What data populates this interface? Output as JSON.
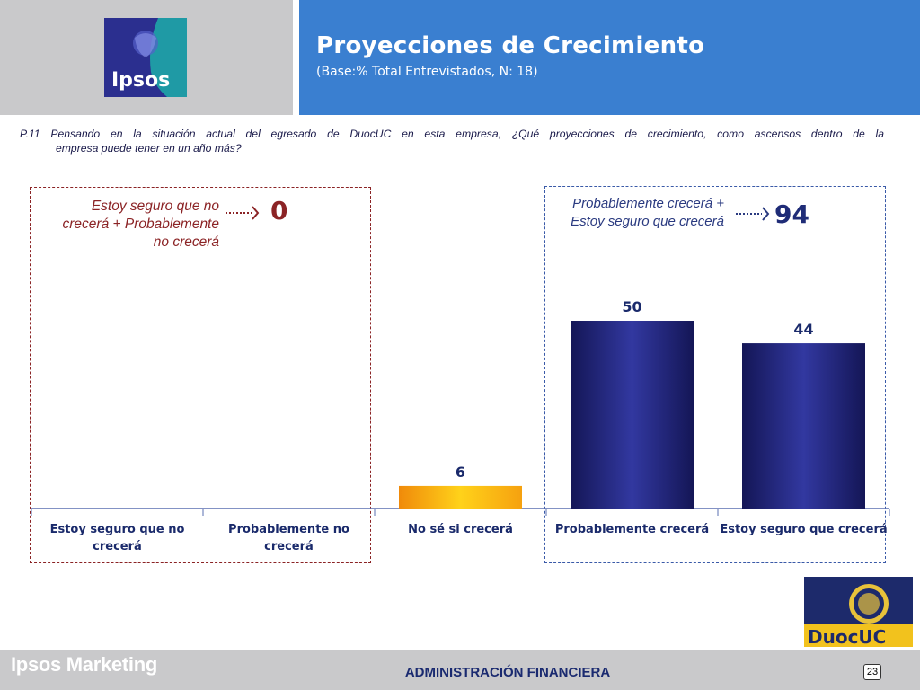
{
  "header": {
    "title": "Proyecciones de Crecimiento",
    "subtitle": "(Base:% Total Entrevistados, N: 18)",
    "logo_text": "Ipsos"
  },
  "question": {
    "line1": "P.11 Pensando en la situación actual del egresado de DuocUC en esta empresa, ¿Qué proyecciones de crecimiento, como ascensos dentro de la",
    "line2": "empresa puede tener en un año más?"
  },
  "summary": {
    "left": {
      "label_lines": [
        "Estoy seguro que no",
        "crecerá + Probablemente",
        "no crecerá"
      ],
      "value": "0"
    },
    "right": {
      "label_lines": [
        "Probablemente crecerá +",
        "Estoy seguro que crecerá"
      ],
      "value": "94"
    }
  },
  "chart_data": {
    "type": "bar",
    "categories": [
      [
        "Estoy seguro que no",
        "crecerá"
      ],
      [
        "Probablemente no",
        "crecerá"
      ],
      [
        "No sé si crecerá"
      ],
      [
        "Probablemente crecerá"
      ],
      [
        "Estoy seguro que crecerá"
      ]
    ],
    "values": [
      0,
      0,
      6,
      50,
      44
    ],
    "data_labels": [
      "",
      "",
      "6",
      "50",
      "44"
    ],
    "ylim": [
      0,
      50
    ],
    "grid": false,
    "colors": [
      "#f6a10f",
      "#f6a10f",
      "#f6a10f",
      "#262a80",
      "#262a80"
    ]
  },
  "footer": {
    "brand": "Ipsos Marketing",
    "center": "ADMINISTRACIÓN FINANCIERA",
    "page": "23",
    "logo_text": "DuocUC"
  },
  "colors": {
    "header_blue": "#3a7fd0",
    "header_grey": "#c9c9cb",
    "negative_accent": "#8b2325",
    "positive_accent": "#262a80"
  }
}
